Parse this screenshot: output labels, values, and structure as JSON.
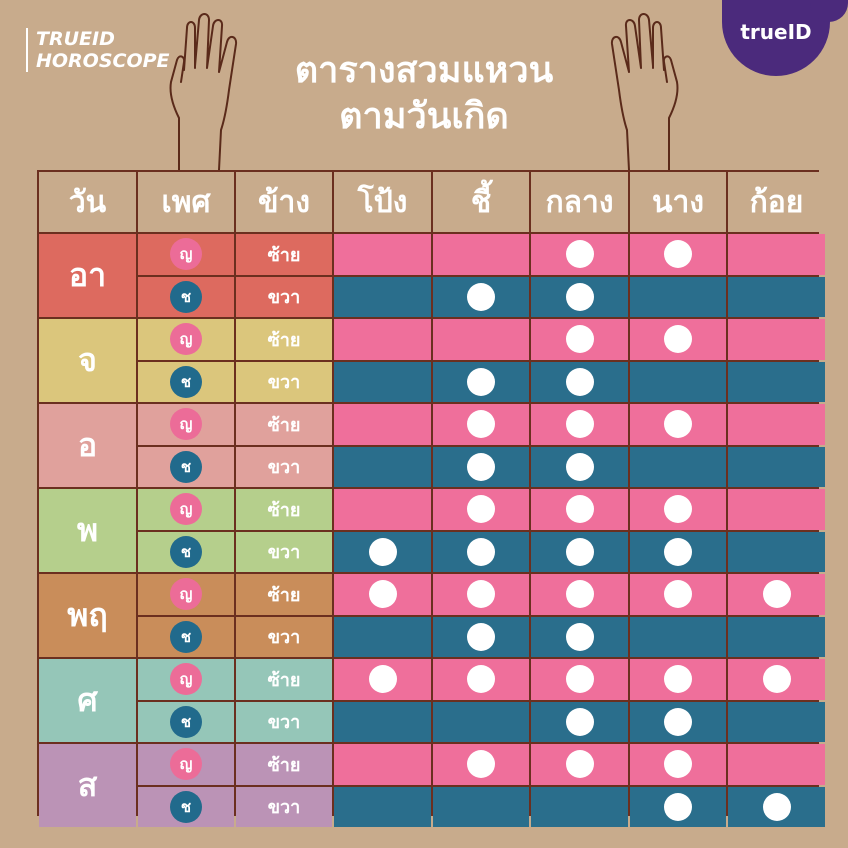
{
  "brand": {
    "line1": "TRUEID",
    "line2": "HOROSCOPE"
  },
  "logo": {
    "text": "trueID"
  },
  "title": {
    "line1": "ตารางสวมแหวน",
    "line2": "ตามวันเกิด"
  },
  "headers": [
    "วัน",
    "เพศ",
    "ข้าง",
    "โป้ง",
    "ชี้",
    "กลาง",
    "นาง",
    "ก้อย"
  ],
  "colors": {
    "female_row": "#ef6f9b",
    "male_row": "#2a6e8c",
    "female_badge": "#ec6c98",
    "male_badge": "#216a8c",
    "grid_border": "#6b2f1f",
    "background": "#c8ab8c"
  },
  "rows": [
    {
      "day": "อา",
      "color": "#dd6a5f",
      "female": {
        "sex": "ญ",
        "side": "ซ้าย",
        "fingers": [
          false,
          false,
          true,
          true,
          false
        ]
      },
      "male": {
        "sex": "ช",
        "side": "ขวา",
        "fingers": [
          false,
          true,
          true,
          false,
          false
        ]
      }
    },
    {
      "day": "จ",
      "color": "#dbc67c",
      "female": {
        "sex": "ญ",
        "side": "ซ้าย",
        "fingers": [
          false,
          false,
          true,
          true,
          false
        ]
      },
      "male": {
        "sex": "ช",
        "side": "ขวา",
        "fingers": [
          false,
          true,
          true,
          false,
          false
        ]
      }
    },
    {
      "day": "อ",
      "color": "#e0a19c",
      "female": {
        "sex": "ญ",
        "side": "ซ้าย",
        "fingers": [
          false,
          true,
          true,
          true,
          false
        ]
      },
      "male": {
        "sex": "ช",
        "side": "ขวา",
        "fingers": [
          false,
          true,
          true,
          false,
          false
        ]
      }
    },
    {
      "day": "พ",
      "color": "#b5cf8c",
      "female": {
        "sex": "ญ",
        "side": "ซ้าย",
        "fingers": [
          false,
          true,
          true,
          true,
          false
        ]
      },
      "male": {
        "sex": "ช",
        "side": "ขวา",
        "fingers": [
          true,
          true,
          true,
          true,
          false
        ]
      }
    },
    {
      "day": "พฤ",
      "color": "#c98d5a",
      "female": {
        "sex": "ญ",
        "side": "ซ้าย",
        "fingers": [
          true,
          true,
          true,
          true,
          true
        ]
      },
      "male": {
        "sex": "ช",
        "side": "ขวา",
        "fingers": [
          false,
          true,
          true,
          false,
          false
        ]
      }
    },
    {
      "day": "ศ",
      "color": "#95c6b8",
      "female": {
        "sex": "ญ",
        "side": "ซ้าย",
        "fingers": [
          true,
          true,
          true,
          true,
          true
        ]
      },
      "male": {
        "sex": "ช",
        "side": "ขวา",
        "fingers": [
          false,
          false,
          true,
          true,
          false
        ]
      }
    },
    {
      "day": "ส",
      "color": "#bb93b6",
      "female": {
        "sex": "ญ",
        "side": "ซ้าย",
        "fingers": [
          false,
          true,
          true,
          true,
          false
        ]
      },
      "male": {
        "sex": "ช",
        "side": "ขวา",
        "fingers": [
          false,
          false,
          false,
          true,
          true
        ]
      }
    }
  ]
}
